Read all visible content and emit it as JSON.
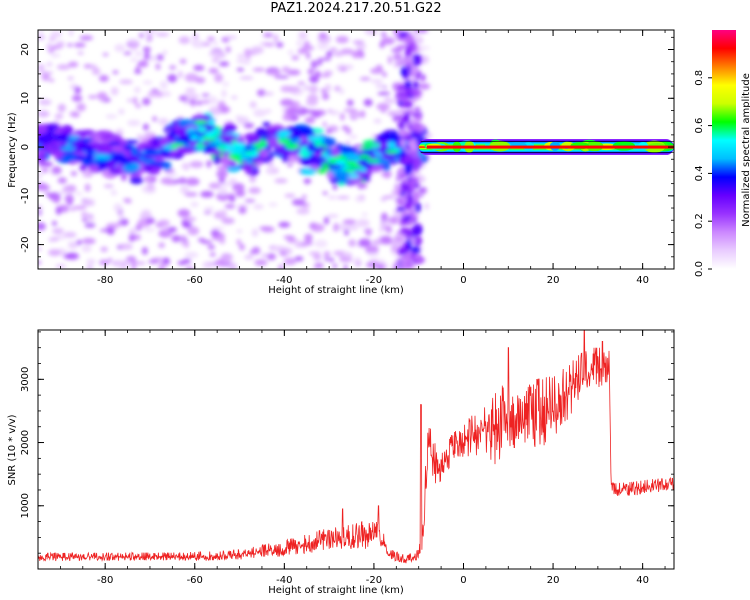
{
  "figure": {
    "title": "PAZ1.2024.217.20.51.G22"
  },
  "chart_data": [
    {
      "type": "heatmap",
      "name": "spectrogram",
      "xlabel": "Height of straight line (km)",
      "ylabel": "Frequency (Hz)",
      "xlim": [
        -95,
        47
      ],
      "ylim": [
        -25,
        24
      ],
      "xticks": [
        -80,
        -60,
        -40,
        -20,
        0,
        20,
        40
      ],
      "yticks": [
        -20,
        -10,
        0,
        10,
        20
      ],
      "colorbar": {
        "label": "Normalized spectral amplitude",
        "range": [
          0.0,
          1.0
        ],
        "ticks": [
          0.0,
          0.2,
          0.4,
          0.6,
          0.8
        ],
        "colormap": [
          "#ffffff",
          "#e9ccff",
          "#cc88ff",
          "#9933ff",
          "#6600ff",
          "#0000ff",
          "#00bfff",
          "#00ffff",
          "#00ff00",
          "#ccff00",
          "#ffff00",
          "#ff8000",
          "#ff0000",
          "#ff0080"
        ]
      },
      "band_center_hz": [
        [
          -93,
          1
        ],
        [
          -88,
          0
        ],
        [
          -83,
          -1
        ],
        [
          -78,
          -2
        ],
        [
          -73,
          -3
        ],
        [
          -68,
          -1
        ],
        [
          -63,
          2
        ],
        [
          -58,
          3
        ],
        [
          -53,
          0
        ],
        [
          -48,
          -2
        ],
        [
          -43,
          2
        ],
        [
          -38,
          1
        ],
        [
          -33,
          -1
        ],
        [
          -28,
          -3
        ],
        [
          -24,
          -5
        ],
        [
          -20,
          -2
        ],
        [
          -16,
          0
        ],
        [
          -12,
          0
        ],
        [
          -8,
          0
        ],
        [
          0,
          0
        ],
        [
          10,
          1
        ],
        [
          20,
          0
        ],
        [
          30,
          0
        ],
        [
          47,
          0
        ]
      ],
      "tone_region": {
        "x_start": -10,
        "x_end": 47,
        "freq_hz": 0,
        "amplitude": 1.0
      }
    },
    {
      "type": "line",
      "name": "snr",
      "xlabel": "Height of straight line (km)",
      "ylabel": "SNR (10 * v/v)",
      "xlim": [
        -95,
        47
      ],
      "ylim": [
        0,
        3780
      ],
      "xticks": [
        -80,
        -60,
        -40,
        -20,
        0,
        20,
        40
      ],
      "yticks": [
        1000,
        2000,
        3000
      ],
      "color": "#ee2222",
      "envelope": [
        [
          -95,
          120,
          250
        ],
        [
          -80,
          130,
          260
        ],
        [
          -65,
          130,
          260
        ],
        [
          -55,
          130,
          280
        ],
        [
          -50,
          150,
          320
        ],
        [
          -45,
          180,
          380
        ],
        [
          -40,
          200,
          450
        ],
        [
          -35,
          250,
          550
        ],
        [
          -30,
          280,
          650
        ],
        [
          -25,
          300,
          700
        ],
        [
          -20,
          320,
          800
        ],
        [
          -18,
          300,
          600
        ],
        [
          -16,
          120,
          300
        ],
        [
          -13,
          80,
          220
        ],
        [
          -10,
          100,
          300
        ],
        [
          -9,
          200,
          800
        ],
        [
          -8,
          1500,
          2400
        ],
        [
          -6,
          1300,
          1900
        ],
        [
          -3,
          1600,
          2100
        ],
        [
          0,
          1700,
          2300
        ],
        [
          3,
          1800,
          2500
        ],
        [
          6,
          1600,
          2600
        ],
        [
          8,
          1500,
          3000
        ],
        [
          10,
          1800,
          2700
        ],
        [
          13,
          2000,
          2800
        ],
        [
          16,
          1900,
          3000
        ],
        [
          20,
          2000,
          3050
        ],
        [
          23,
          2300,
          3200
        ],
        [
          26,
          2600,
          3400
        ],
        [
          29,
          2800,
          3500
        ],
        [
          31,
          2900,
          3500
        ],
        [
          32.5,
          2900,
          3450
        ],
        [
          33,
          1150,
          1350
        ],
        [
          38,
          1150,
          1380
        ],
        [
          42,
          1200,
          1420
        ],
        [
          47,
          1250,
          1450
        ]
      ],
      "spikes": [
        [
          -9.5,
          2600
        ],
        [
          10,
          3500
        ],
        [
          27,
          3780
        ],
        [
          31,
          3600
        ],
        [
          -19,
          1000
        ],
        [
          -27,
          950
        ]
      ]
    }
  ]
}
